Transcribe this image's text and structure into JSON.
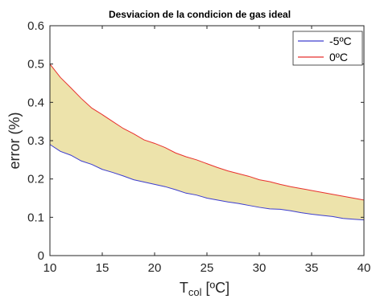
{
  "chart_data": {
    "type": "area",
    "title": "Desviacion de la condicion de gas ideal",
    "xlabel": {
      "base": "T",
      "sub": "col",
      "rest": " [ºC]"
    },
    "ylabel": "error (%)",
    "xlim": [
      10,
      40
    ],
    "ylim": [
      0,
      0.6
    ],
    "xticks": [
      "10",
      "15",
      "20",
      "25",
      "30",
      "35",
      "40"
    ],
    "yticks": [
      "0",
      "0.1",
      "0.2",
      "0.3",
      "0.4",
      "0.5",
      "0.6"
    ],
    "grid": false,
    "legend_position": "top-right",
    "fill_color": "#ede3ab",
    "x": [
      10,
      11,
      12,
      13,
      14,
      15,
      16,
      17,
      18,
      19,
      20,
      21,
      22,
      23,
      24,
      25,
      26,
      27,
      28,
      29,
      30,
      31,
      32,
      33,
      34,
      35,
      36,
      37,
      38,
      39,
      40
    ],
    "series": [
      {
        "name": "-5ºC",
        "color": "#3d3dcf",
        "values": [
          0.29,
          0.272,
          0.262,
          0.247,
          0.238,
          0.225,
          0.217,
          0.208,
          0.198,
          0.192,
          0.186,
          0.18,
          0.172,
          0.163,
          0.158,
          0.15,
          0.145,
          0.14,
          0.136,
          0.131,
          0.126,
          0.122,
          0.121,
          0.117,
          0.112,
          0.108,
          0.105,
          0.102,
          0.097,
          0.095,
          0.093
        ]
      },
      {
        "name": "0ºC",
        "color": "#e8312e",
        "values": [
          0.5,
          0.465,
          0.438,
          0.41,
          0.385,
          0.368,
          0.35,
          0.332,
          0.318,
          0.302,
          0.293,
          0.282,
          0.268,
          0.258,
          0.25,
          0.24,
          0.23,
          0.221,
          0.214,
          0.207,
          0.198,
          0.193,
          0.186,
          0.18,
          0.175,
          0.17,
          0.165,
          0.16,
          0.155,
          0.15,
          0.145
        ]
      }
    ]
  }
}
